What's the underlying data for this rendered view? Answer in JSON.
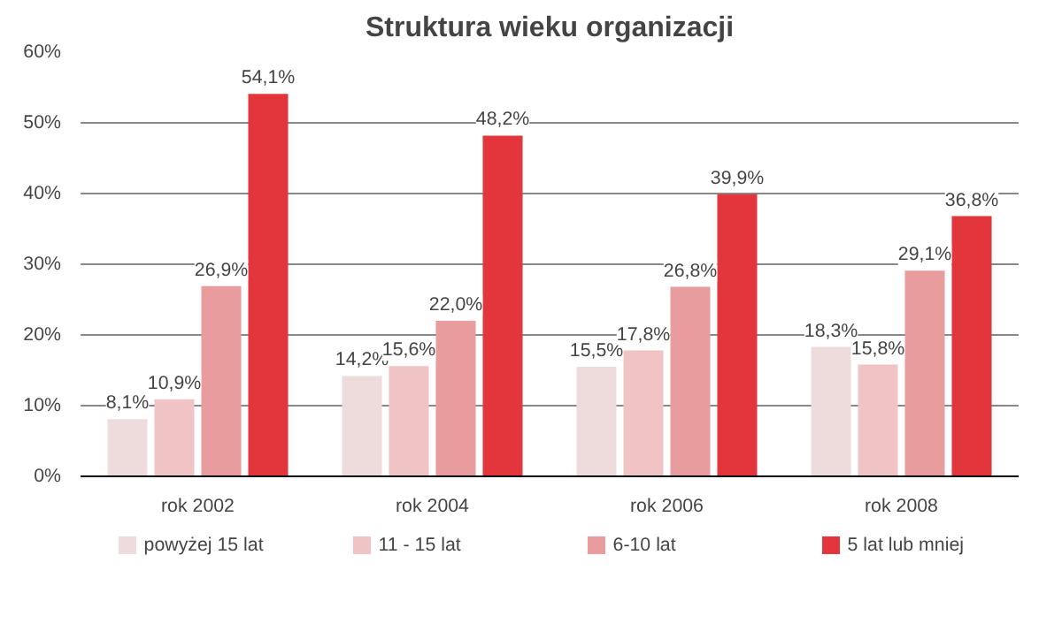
{
  "chart_data": {
    "type": "bar",
    "title": "Struktura wieku organizacji",
    "categories": [
      "rok 2002",
      "rok 2004",
      "rok 2006",
      "rok 2008"
    ],
    "series": [
      {
        "name": "powyżej 15 lat",
        "color": "#eedcdc",
        "values": [
          8.1,
          14.2,
          15.5,
          18.3
        ],
        "value_labels": [
          "8,1%",
          "14,2%",
          "15,5%",
          "18,3%"
        ]
      },
      {
        "name": "11 - 15 lat",
        "color": "#f0c4c4",
        "values": [
          10.9,
          15.6,
          17.8,
          15.8
        ],
        "value_labels": [
          "10,9%",
          "15,6%",
          "17,8%",
          "15,8%"
        ]
      },
      {
        "name": "6-10 lat",
        "color": "#e89c9e",
        "values": [
          26.9,
          22.0,
          26.8,
          29.1
        ],
        "value_labels": [
          "26,9%",
          "22,0%",
          "26,8%",
          "29,1%"
        ]
      },
      {
        "name": "5 lat lub mniej",
        "color": "#e3363c",
        "values": [
          54.1,
          48.2,
          39.9,
          36.8
        ],
        "value_labels": [
          "54,1%",
          "48,2%",
          "39,9%",
          "36,8%"
        ]
      }
    ],
    "ylim": [
      0,
      60
    ],
    "yticks": [
      {
        "value": 0,
        "label": "0%"
      },
      {
        "value": 10,
        "label": "10%"
      },
      {
        "value": 20,
        "label": "20%"
      },
      {
        "value": 30,
        "label": "30%"
      },
      {
        "value": 40,
        "label": "40%"
      },
      {
        "value": 50,
        "label": "50%"
      },
      {
        "value": 60,
        "label": "60%"
      }
    ],
    "grid": "y",
    "legend": "bottom"
  }
}
